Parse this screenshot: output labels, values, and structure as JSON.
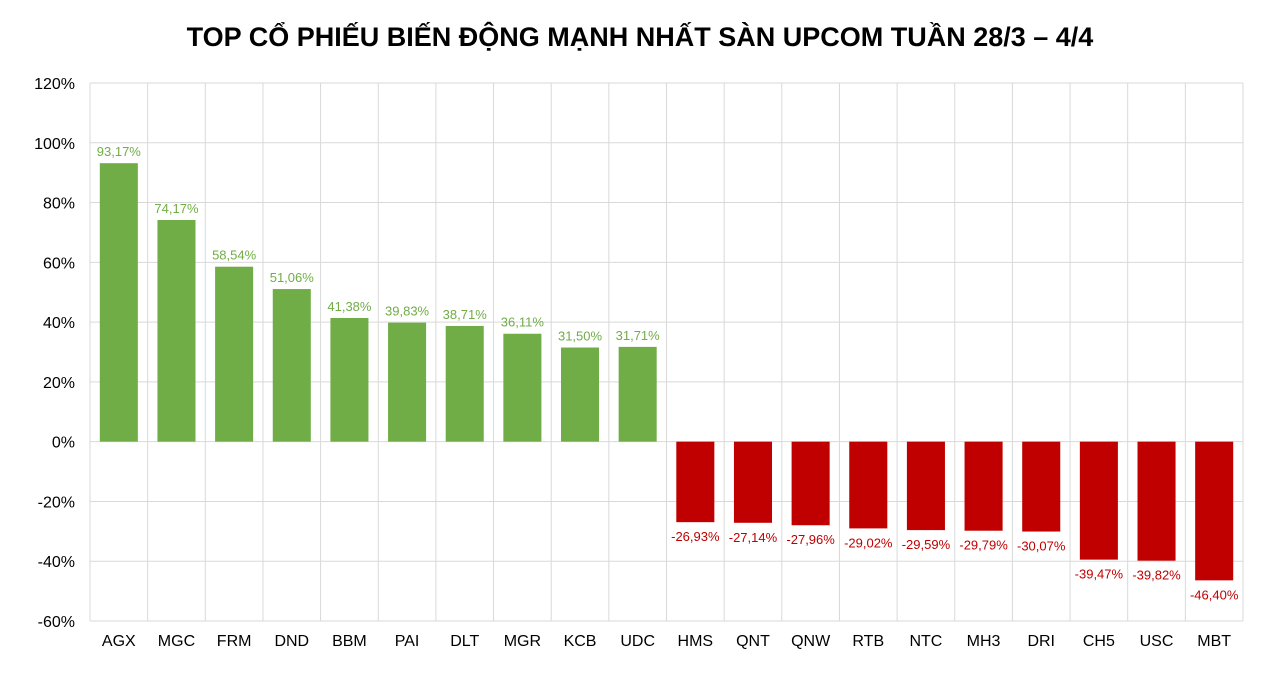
{
  "chart_data": {
    "type": "bar",
    "title": "TOP CỔ PHIẾU BIẾN ĐỘNG MẠNH NHẤT SÀN UPCOM TUẦN 28/3 – 4/4",
    "xlabel": "",
    "ylabel": "",
    "ylim": [
      -60,
      120
    ],
    "yticks": [
      120,
      100,
      80,
      60,
      40,
      20,
      0,
      -20,
      -40,
      -60
    ],
    "ytick_labels": [
      "120%",
      "100%",
      "80%",
      "60%",
      "40%",
      "20%",
      "0%",
      "-20%",
      "-40%",
      "-60%"
    ],
    "grid": true,
    "legend": "none",
    "categories": [
      "AGX",
      "MGC",
      "FRM",
      "DND",
      "BBM",
      "PAI",
      "DLT",
      "MGR",
      "KCB",
      "UDC",
      "HMS",
      "QNT",
      "QNW",
      "RTB",
      "NTC",
      "MH3",
      "DRI",
      "CH5",
      "USC",
      "MBT"
    ],
    "values": [
      93.17,
      74.17,
      58.54,
      51.06,
      41.38,
      39.83,
      38.71,
      36.11,
      31.5,
      31.71,
      -26.93,
      -27.14,
      -27.96,
      -29.02,
      -29.59,
      -29.79,
      -30.07,
      -39.47,
      -39.82,
      -46.4
    ],
    "data_labels": [
      "93,17%",
      "74,17%",
      "58,54%",
      "51,06%",
      "41,38%",
      "39,83%",
      "38,71%",
      "36,11%",
      "31,50%",
      "31,71%",
      "-26,93%",
      "-27,14%",
      "-27,96%",
      "-29,02%",
      "-29,59%",
      "-29,79%",
      "-30,07%",
      "-39,47%",
      "-39,82%",
      "-46,40%"
    ],
    "colors": {
      "positive": "#70ad47",
      "negative": "#c00000",
      "positive_label": "#70ad47",
      "negative_label": "#c00000",
      "grid": "#d9d9d9"
    }
  }
}
